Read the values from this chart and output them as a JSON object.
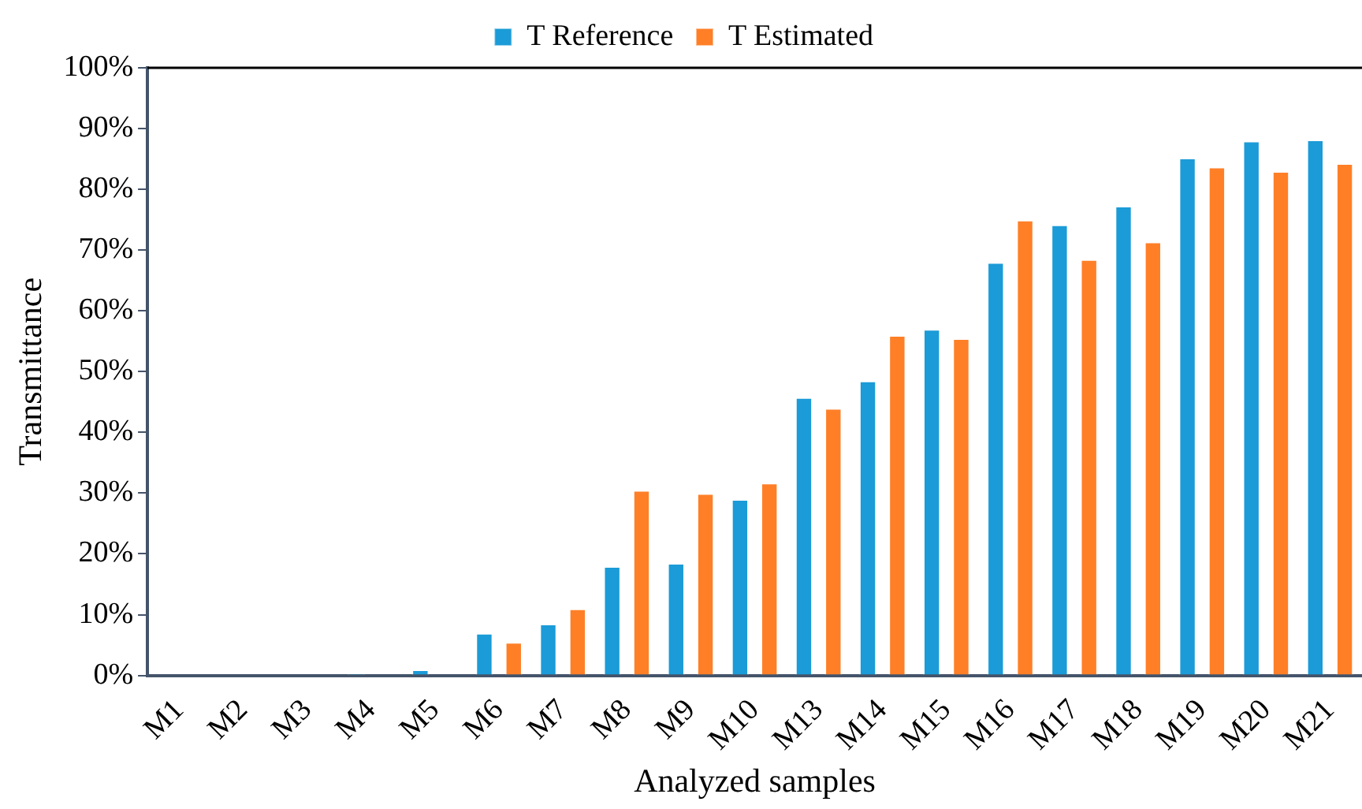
{
  "chart_data": {
    "type": "bar",
    "xlabel": "Analyzed samples",
    "ylabel": "Transmittance",
    "categories": [
      "M1",
      "M2",
      "M3",
      "M4",
      "M5",
      "M6",
      "M7",
      "M8",
      "M9",
      "M10",
      "M13",
      "M14",
      "M15",
      "M16",
      "M17",
      "M18",
      "M19",
      "M20",
      "M21"
    ],
    "series": [
      {
        "name": "T Reference",
        "color": "#1b9bd7",
        "values": [
          0,
          0,
          0,
          0.3,
          1,
          7,
          8.5,
          18,
          18.5,
          29,
          45.8,
          48.5,
          57,
          68,
          74.2,
          77.3,
          85.2,
          88,
          88.2
        ]
      },
      {
        "name": "T Estimated",
        "color": "#ff7f27",
        "values": [
          0,
          0,
          0,
          0,
          0,
          5.5,
          11,
          30.5,
          30,
          31.7,
          44,
          56,
          55.5,
          75,
          68.5,
          71.4,
          83.7,
          83,
          84.3
        ]
      }
    ],
    "ylim": [
      0,
      100
    ],
    "yticks": [
      {
        "value": 0,
        "label": "0%"
      },
      {
        "value": 10,
        "label": "10%"
      },
      {
        "value": 20,
        "label": "20%"
      },
      {
        "value": 30,
        "label": "30%"
      },
      {
        "value": 40,
        "label": "40%"
      },
      {
        "value": 50,
        "label": "50%"
      },
      {
        "value": 60,
        "label": "60%"
      },
      {
        "value": 70,
        "label": "70%"
      },
      {
        "value": 80,
        "label": "80%"
      },
      {
        "value": 90,
        "label": "90%"
      },
      {
        "value": 100,
        "label": "100%"
      }
    ],
    "grid": false,
    "legend": "top"
  }
}
